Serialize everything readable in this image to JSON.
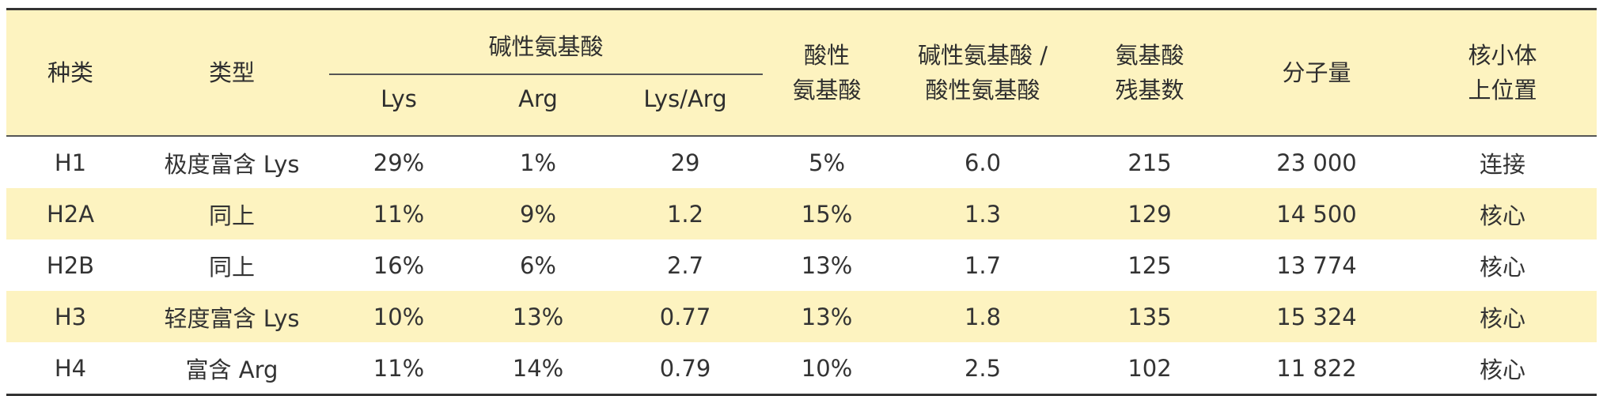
{
  "table": {
    "headers": {
      "kind": "种类",
      "type": "类型",
      "basic_group": "碱性氨基酸",
      "lys": "Lys",
      "arg": "Arg",
      "lys_arg": "Lys/Arg",
      "acidic_l1": "酸性",
      "acidic_l2": "氨基酸",
      "ratio_l1": "碱性氨基酸 /",
      "ratio_l2": "酸性氨基酸",
      "residues_l1": "氨基酸",
      "residues_l2": "残基数",
      "mw": "分子量",
      "pos_l1": "核小体",
      "pos_l2": "上位置"
    },
    "rows": [
      {
        "kind": "H1",
        "type": "极度富含 Lys",
        "lys": "29%",
        "arg": "1%",
        "lys_arg": "29",
        "acidic": "5%",
        "ratio": "6.0",
        "residues": "215",
        "mw": "23 000",
        "pos": "连接"
      },
      {
        "kind": "H2A",
        "type": "同上",
        "lys": "11%",
        "arg": "9%",
        "lys_arg": "1.2",
        "acidic": "15%",
        "ratio": "1.3",
        "residues": "129",
        "mw": "14 500",
        "pos": "核心"
      },
      {
        "kind": "H2B",
        "type": "同上",
        "lys": "16%",
        "arg": "6%",
        "lys_arg": "2.7",
        "acidic": "13%",
        "ratio": "1.7",
        "residues": "125",
        "mw": "13 774",
        "pos": "核心"
      },
      {
        "kind": "H3",
        "type": "轻度富含 Lys",
        "lys": "10%",
        "arg": "13%",
        "lys_arg": "0.77",
        "acidic": "13%",
        "ratio": "1.8",
        "residues": "135",
        "mw": "15 324",
        "pos": "核心"
      },
      {
        "kind": "H4",
        "type": "富含 Arg",
        "lys": "11%",
        "arg": "14%",
        "lys_arg": "0.79",
        "acidic": "10%",
        "ratio": "2.5",
        "residues": "102",
        "mw": "11 822",
        "pos": "核心"
      }
    ]
  }
}
